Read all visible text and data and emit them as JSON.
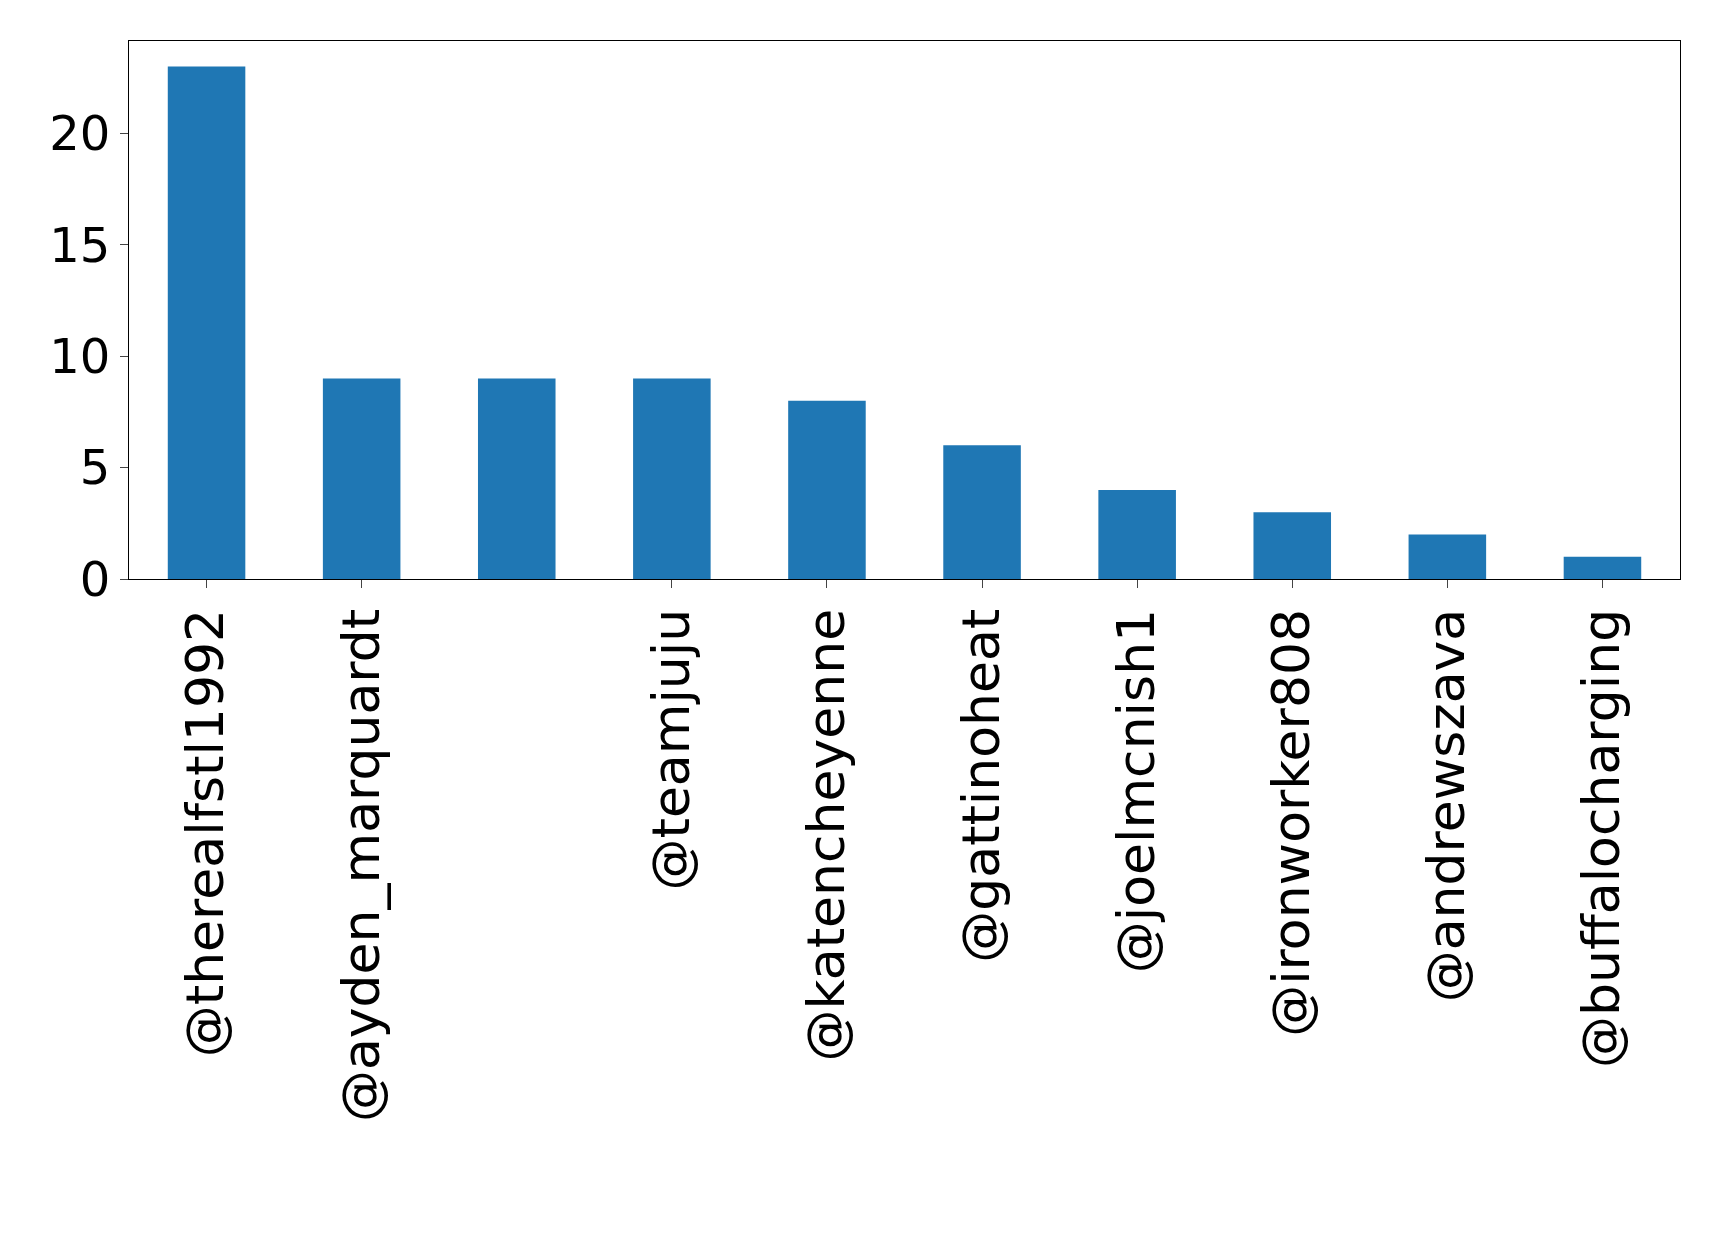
{
  "chart_data": {
    "type": "bar",
    "categories": [
      "@therealfstl1992",
      "@ayden_marquardt",
      null,
      "@teamjuju",
      "@katencheyenne",
      "@gattinoheat",
      "@joelmcnish1",
      "@ironworker808",
      "@andrewszava",
      "@buffalocharging"
    ],
    "values": [
      23,
      9,
      9,
      9,
      8,
      6,
      4,
      3,
      2,
      1
    ],
    "color": "#1f77b4",
    "ylim": [
      0,
      24.15
    ],
    "yticks": [
      0,
      5,
      10,
      15,
      20
    ],
    "legend": false
  }
}
